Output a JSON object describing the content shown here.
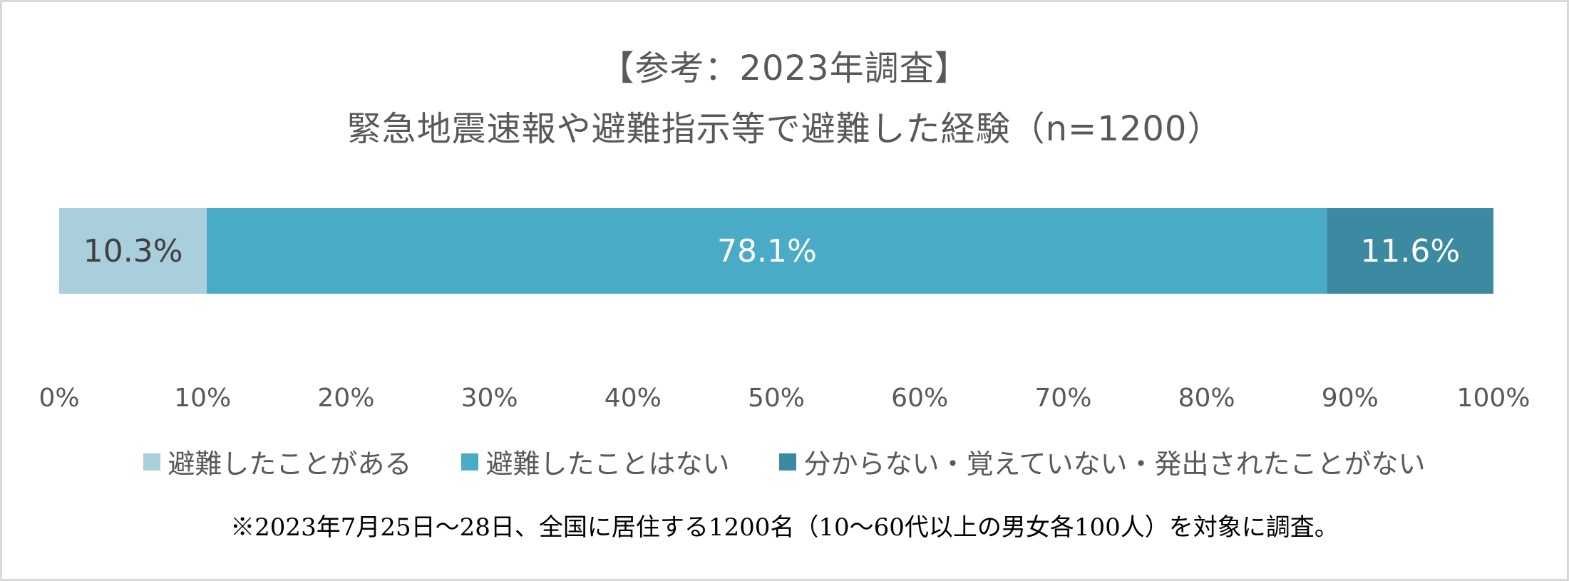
{
  "title": {
    "line1": "【参考：2023年調査】",
    "line2": "緊急地震速報や避難指示等で避難した経験（n=1200）"
  },
  "colors": {
    "evacuated": "#a9cfdd",
    "not_evacuated": "#4aabc6",
    "unknown": "#3c89a2",
    "text_dark": "#404040",
    "text_light": "#ffffff",
    "axis_text": "#595959",
    "frame": "#d9d9d9"
  },
  "segments": [
    {
      "label": "10.3%",
      "value": 10.3,
      "color": "#a9cfdd",
      "text_color": "#404040"
    },
    {
      "label": "78.1%",
      "value": 78.1,
      "color": "#4aabc6",
      "text_color": "#ffffff"
    },
    {
      "label": "11.6%",
      "value": 11.6,
      "color": "#3c89a2",
      "text_color": "#ffffff"
    }
  ],
  "axis": {
    "ticks": [
      "0%",
      "10%",
      "20%",
      "30%",
      "40%",
      "50%",
      "60%",
      "70%",
      "80%",
      "90%",
      "100%"
    ]
  },
  "legend": [
    {
      "label": "避難したことがある",
      "color": "#a9cfdd"
    },
    {
      "label": "避難したことはない",
      "color": "#4aabc6"
    },
    {
      "label": "分からない・覚えていない・発出されたことがない",
      "color": "#3c89a2"
    }
  ],
  "note": "※2023年7月25日〜28日、全国に居住する1200名（10〜60代以上の男女各100人）を対象に調査。",
  "chart_data": {
    "type": "bar",
    "orientation": "horizontal",
    "stacked": true,
    "normalized": true,
    "title": "【参考：2023年調査】緊急地震速報や避難指示等で避難した経験（n=1200）",
    "categories": [
      "2023"
    ],
    "series": [
      {
        "name": "避難したことがある",
        "values": [
          10.3
        ],
        "color": "#a9cfdd"
      },
      {
        "name": "避難したことはない",
        "values": [
          78.1
        ],
        "color": "#4aabc6"
      },
      {
        "name": "分からない・覚えていない・発出されたことがない",
        "values": [
          11.6
        ],
        "color": "#3c89a2"
      }
    ],
    "data_labels": [
      "10.3%",
      "78.1%",
      "11.6%"
    ],
    "xlabel": "",
    "ylabel": "",
    "xlim": [
      0,
      100
    ],
    "x_ticks": [
      "0%",
      "10%",
      "20%",
      "30%",
      "40%",
      "50%",
      "60%",
      "70%",
      "80%",
      "90%",
      "100%"
    ],
    "grid": false,
    "legend_position": "bottom",
    "annotation": "※2023年7月25日〜28日、全国に居住する1200名（10〜60代以上の男女各100人）を対象に調査。"
  }
}
